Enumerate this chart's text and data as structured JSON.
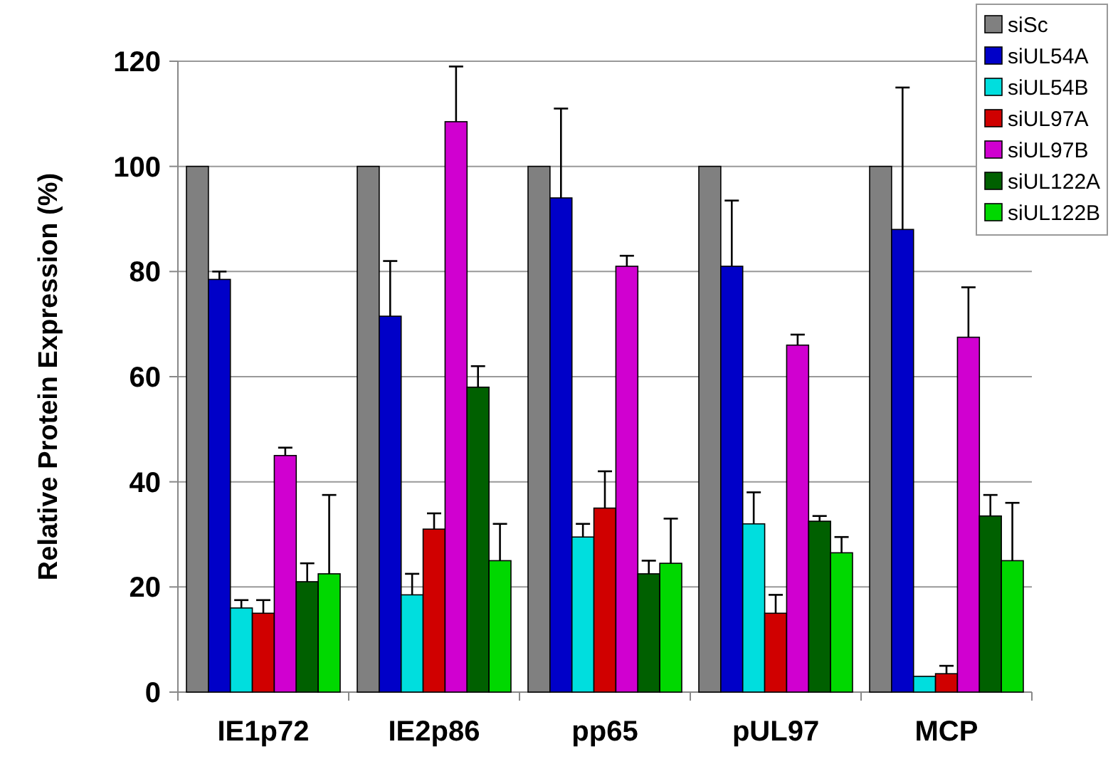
{
  "chart_data": {
    "type": "bar",
    "ylabel": "Relative Protein Expression (%)",
    "categories": [
      "IE1p72",
      "IE2p86",
      "pp65",
      "pUL97",
      "MCP"
    ],
    "ylim": [
      0,
      120
    ],
    "yticks": [
      0,
      20,
      40,
      60,
      80,
      100,
      120
    ],
    "grid": "y",
    "legend": "top right",
    "series": [
      {
        "name": "siSc",
        "color": "#808080",
        "values": [
          100,
          100,
          100,
          100,
          100
        ]
      },
      {
        "name": "siUL54A",
        "color": "#0000c8",
        "values": [
          78.5,
          71.5,
          94,
          81,
          88
        ],
        "errors": [
          [
            78.5,
            80
          ],
          [
            71.5,
            82
          ],
          [
            94,
            111
          ],
          [
            81,
            93.5
          ],
          [
            88,
            115
          ]
        ]
      },
      {
        "name": "siUL54B",
        "color": "#00dede",
        "values": [
          16,
          18.5,
          29.5,
          32,
          3
        ],
        "errors": [
          [
            16,
            17.5
          ],
          [
            18.5,
            22.5
          ],
          [
            29.5,
            32
          ],
          [
            32,
            38
          ],
          null
        ]
      },
      {
        "name": "siUL97A",
        "color": "#d00000",
        "values": [
          15,
          31,
          35,
          15,
          3.5
        ],
        "errors": [
          [
            15,
            17.5
          ],
          [
            31,
            34
          ],
          [
            35,
            42
          ],
          [
            15,
            18.5
          ],
          [
            3.5,
            5
          ]
        ]
      },
      {
        "name": "siUL97B",
        "color": "#d000d0",
        "values": [
          45,
          108.5,
          81,
          66,
          67.5
        ],
        "errors": [
          [
            45,
            46.5
          ],
          [
            108.5,
            119
          ],
          [
            81,
            83
          ],
          [
            66,
            68
          ],
          [
            67.5,
            77
          ]
        ]
      },
      {
        "name": "siUL122A",
        "color": "#006000",
        "values": [
          21,
          58,
          22.5,
          32.5,
          33.5
        ],
        "errors": [
          [
            21,
            24.5
          ],
          [
            58,
            62
          ],
          [
            22.5,
            25
          ],
          [
            32.5,
            33.5
          ],
          [
            33.5,
            37.5
          ]
        ]
      },
      {
        "name": "siUL122B",
        "color": "#00d800",
        "values": [
          22.5,
          25,
          24.5,
          26.5,
          25
        ],
        "errors": [
          [
            22.5,
            37.5
          ],
          [
            25,
            32
          ],
          [
            24.5,
            33
          ],
          [
            26.5,
            29.5
          ],
          [
            25,
            36
          ]
        ]
      }
    ]
  }
}
